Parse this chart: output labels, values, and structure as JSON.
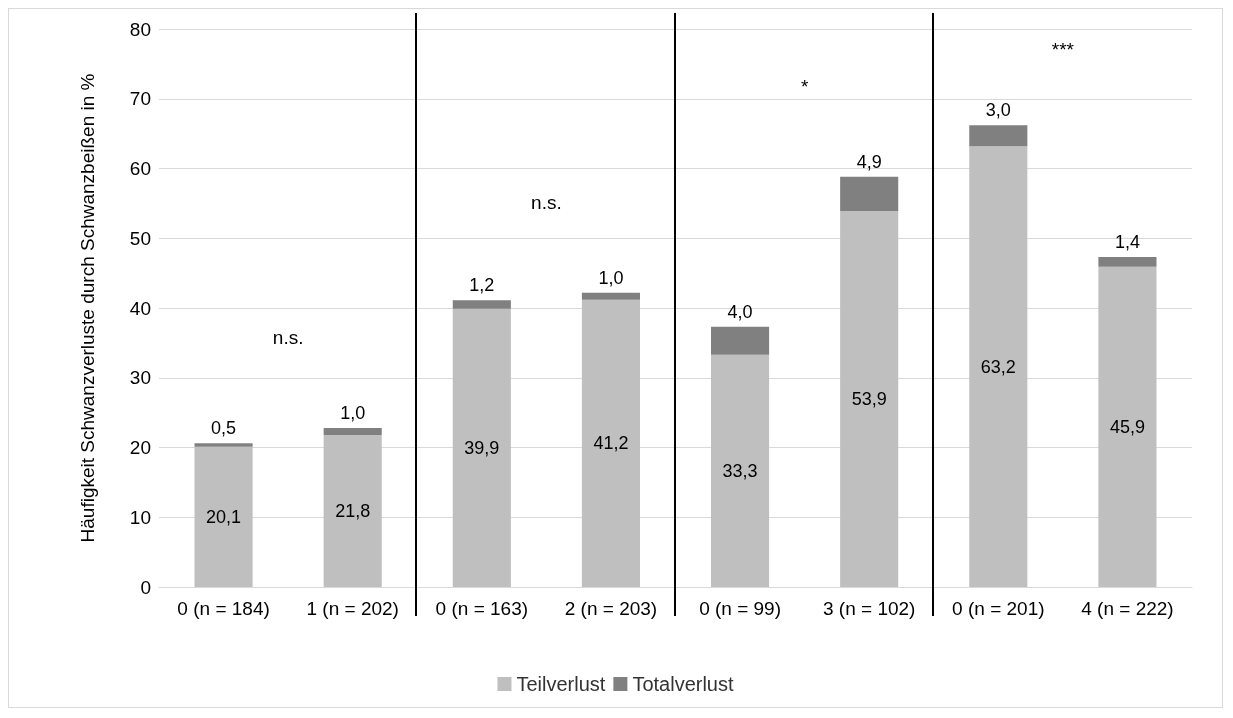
{
  "chart_data": {
    "type": "bar",
    "stacked": true,
    "ylabel": "Häufigkeit Schwanzverluste durch Schwanzbeißen in %",
    "categories": [
      "0 (n = 184)",
      "1 (n = 202)",
      "0 (n = 163)",
      "2 (n = 203)",
      "0 (n = 99)",
      "3 (n = 102)",
      "0 (n = 201)",
      "4 (n = 222)"
    ],
    "series": [
      {
        "name": "Teilverlust",
        "color": "#bfbfbf",
        "values": [
          20.1,
          21.8,
          39.9,
          41.2,
          33.3,
          53.9,
          63.2,
          45.9
        ],
        "value_labels": [
          "20,1",
          "21,8",
          "39,9",
          "41,2",
          "33,3",
          "53,9",
          "63,2",
          "45,9"
        ]
      },
      {
        "name": "Totalverlust",
        "color": "#808080",
        "values": [
          0.5,
          1.0,
          1.2,
          1.0,
          4.0,
          4.9,
          3.0,
          1.4
        ],
        "value_labels": [
          "0,5",
          "1,0",
          "1,2",
          "1,0",
          "4,0",
          "4,9",
          "3,0",
          "1,4"
        ]
      }
    ],
    "ylim": [
      0,
      80
    ],
    "yticks": [
      0,
      10,
      20,
      30,
      40,
      50,
      60,
      70,
      80
    ],
    "grid": "y",
    "legend": "bottom",
    "annotations": [
      "n.s.",
      "n.s.",
      "*",
      "***"
    ]
  }
}
